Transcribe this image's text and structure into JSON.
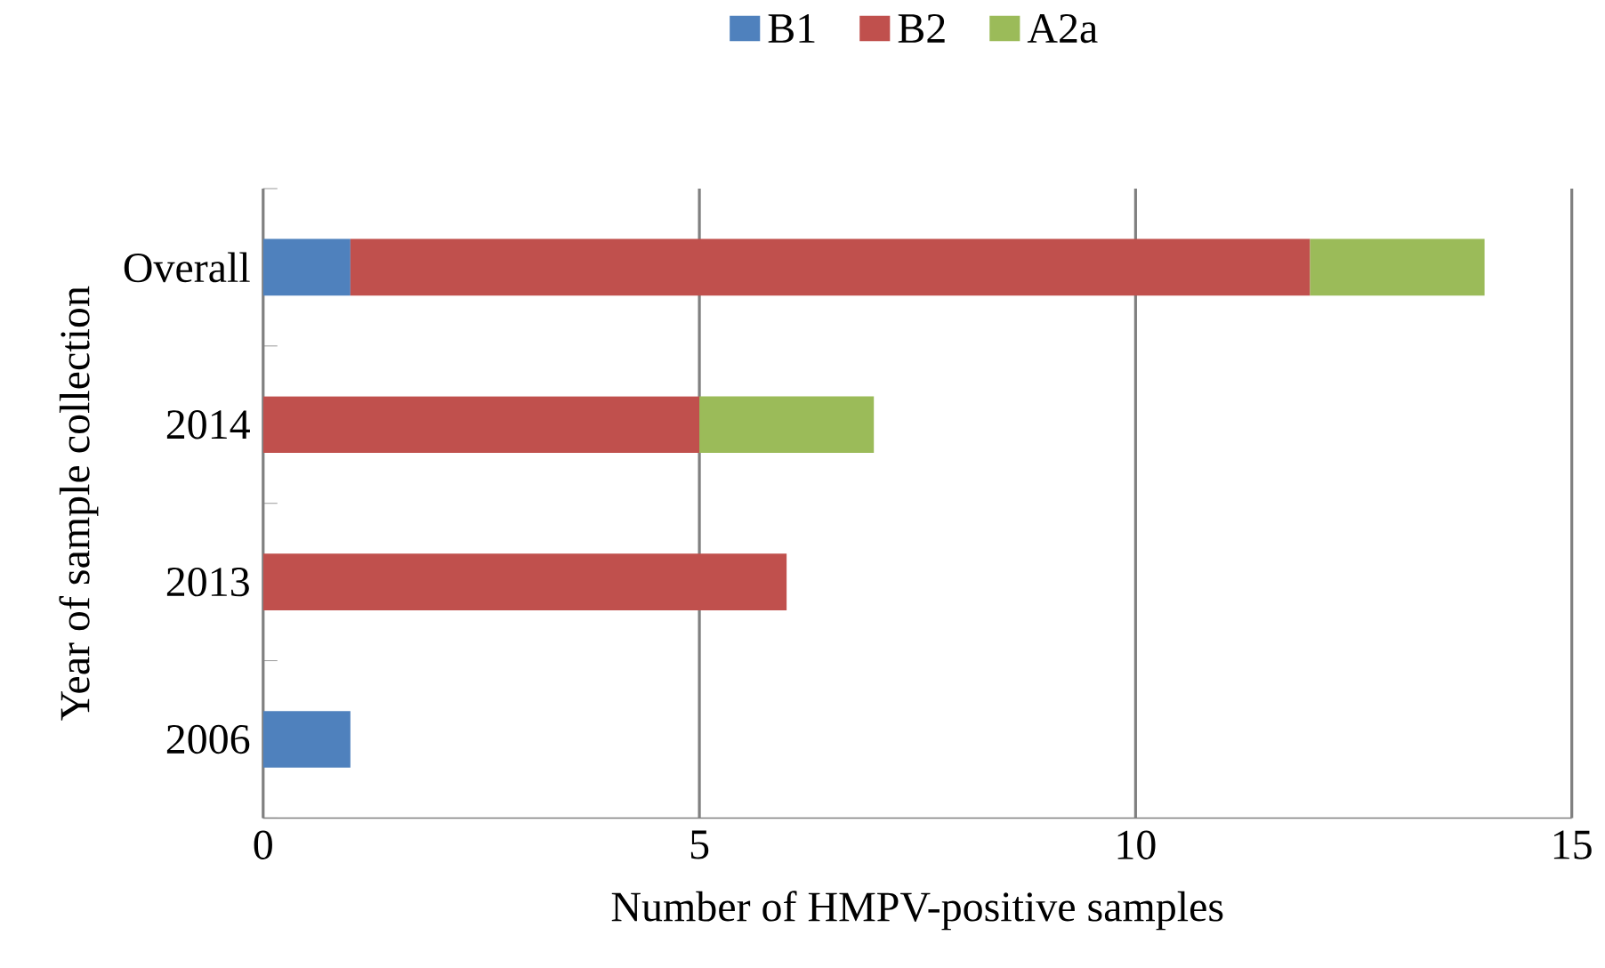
{
  "chart_data": {
    "type": "bar",
    "orientation": "horizontal",
    "stacked": true,
    "xlabel": "Number of HMPV-positive samples",
    "ylabel": "Year of sample collection",
    "categories": [
      "Overall",
      "2014",
      "2013",
      "2006"
    ],
    "series": [
      {
        "name": "B1",
        "color": "#4f81bd",
        "values": [
          1,
          null,
          null,
          1
        ]
      },
      {
        "name": "B2",
        "color": "#c0504d",
        "values": [
          11,
          5,
          6,
          null
        ]
      },
      {
        "name": "A2a",
        "color": "#9bbb59",
        "values": [
          2,
          2,
          null,
          null
        ]
      }
    ],
    "xlim": [
      0,
      15
    ],
    "xticks": [
      0,
      5,
      10,
      15
    ],
    "grid": "x",
    "legend": "top"
  }
}
